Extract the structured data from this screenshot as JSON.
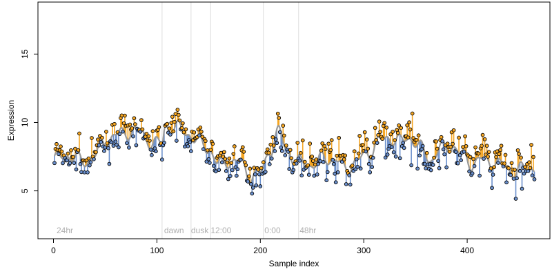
{
  "chart_data": {
    "type": "scatter",
    "xlabel": "Sample index",
    "ylabel": "Expression",
    "xlim": [
      -15,
      480
    ],
    "ylim": [
      1.5,
      18.8
    ],
    "x_ticks": [
      0,
      100,
      200,
      300,
      400
    ],
    "y_ticks": [
      5,
      10,
      15
    ],
    "grid": false,
    "vertical_markers": [
      {
        "x": 105,
        "label": ""
      },
      {
        "x": 133,
        "label": ""
      },
      {
        "x": 152,
        "label": ""
      },
      {
        "x": 203,
        "label": ""
      },
      {
        "x": 237,
        "label": ""
      }
    ],
    "annotations": [
      {
        "x": 3,
        "text": "24hr"
      },
      {
        "x": 107,
        "text": "dawn"
      },
      {
        "x": 133,
        "text": "dusk"
      },
      {
        "x": 152,
        "text": "12:00"
      },
      {
        "x": 204,
        "text": "0:00"
      },
      {
        "x": 238,
        "text": "48hr"
      }
    ],
    "colors": {
      "smooth": "#999999",
      "above": "#f5a623",
      "below": "#6a8fcc",
      "point_above": "#f5a623",
      "point_below": "#6a8fcc"
    },
    "trend_knots": [
      [
        0,
        7.3
      ],
      [
        15,
        7.6
      ],
      [
        30,
        7.1
      ],
      [
        40,
        7.6
      ],
      [
        50,
        8.6
      ],
      [
        60,
        9.1
      ],
      [
        80,
        9.4
      ],
      [
        95,
        8.6
      ],
      [
        105,
        8.4
      ],
      [
        108,
        9.7
      ],
      [
        120,
        9.6
      ],
      [
        130,
        9.2
      ],
      [
        140,
        8.6
      ],
      [
        150,
        8.1
      ],
      [
        160,
        6.9
      ],
      [
        170,
        7.2
      ],
      [
        180,
        7.1
      ],
      [
        190,
        6.1
      ],
      [
        200,
        6.3
      ],
      [
        210,
        8.1
      ],
      [
        218,
        9.3
      ],
      [
        225,
        8.1
      ],
      [
        235,
        7.1
      ],
      [
        250,
        6.9
      ],
      [
        262,
        7.4
      ],
      [
        272,
        7.3
      ],
      [
        282,
        6.6
      ],
      [
        292,
        7.1
      ],
      [
        305,
        7.8
      ],
      [
        315,
        8.6
      ],
      [
        325,
        8.9
      ],
      [
        335,
        8.6
      ],
      [
        345,
        8.9
      ],
      [
        355,
        8.1
      ],
      [
        365,
        7.3
      ],
      [
        375,
        8.1
      ],
      [
        385,
        8.3
      ],
      [
        395,
        7.6
      ],
      [
        405,
        7.0
      ],
      [
        415,
        7.3
      ],
      [
        425,
        7.1
      ],
      [
        435,
        6.8
      ],
      [
        445,
        6.4
      ],
      [
        455,
        6.6
      ],
      [
        465,
        6.7
      ]
    ],
    "n_samples": 465,
    "noise_seed": 7
  }
}
